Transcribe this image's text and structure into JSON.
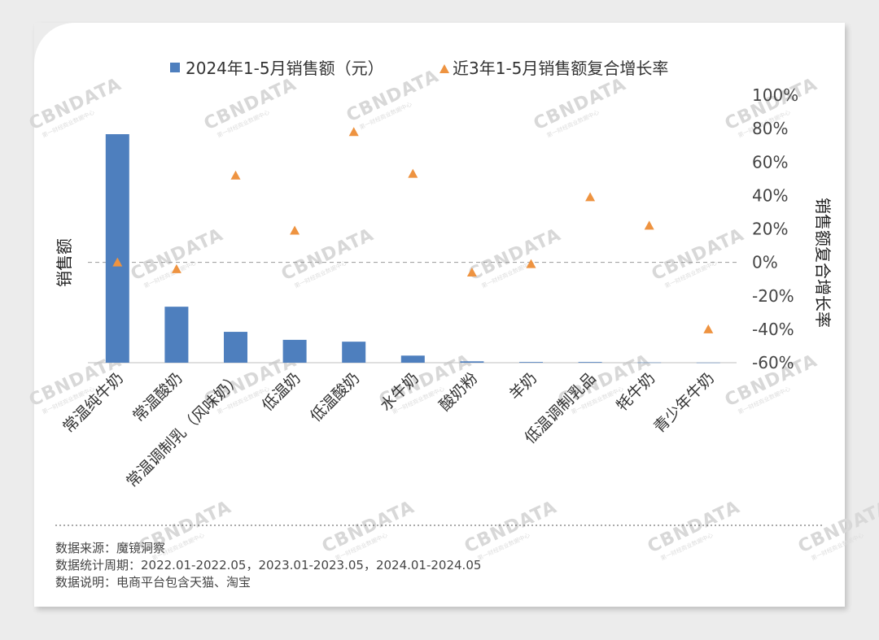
{
  "legend": {
    "bar_label": "2024年1-5月销售额（元）",
    "marker_label": "近3年1-5月销售额复合增长率"
  },
  "axes": {
    "left_title": "销售额",
    "right_title": "销售额复合增长率"
  },
  "watermark": {
    "brand": "CBNDATA",
    "sub": "第一财经商业数据中心"
  },
  "colors": {
    "bar": "#4e7fbe",
    "marker": "#ee9340",
    "zero_line": "#999999"
  },
  "chart_data": {
    "type": "bar",
    "categories": [
      "常温纯牛奶",
      "常温酸奶",
      "常温调制乳（风味奶）",
      "低温奶",
      "低温酸奶",
      "水牛奶",
      "酸奶粉",
      "羊奶",
      "低温调制乳品",
      "牦牛奶",
      "青少年牛奶"
    ],
    "series": [
      {
        "name": "2024年1-5月销售额（元）",
        "type": "bar",
        "axis": "left",
        "values": [
          100,
          24.5,
          13.5,
          10,
          9.2,
          3.1,
          0.6,
          0.3,
          0.3,
          0.1,
          0.05
        ]
      },
      {
        "name": "近3年1-5月销售额复合增长率",
        "type": "scatter",
        "marker": "triangle",
        "axis": "right",
        "values": [
          0,
          -4,
          52,
          19,
          78,
          53,
          -6,
          -1,
          39,
          22,
          -40
        ]
      }
    ],
    "y_left": {
      "title": "销售额",
      "ticks_shown": false,
      "ylim": [
        0,
        100
      ]
    },
    "y_right": {
      "title": "销售额复合增长率",
      "ylim": [
        -60,
        100
      ],
      "ticks": [
        100,
        80,
        60,
        40,
        20,
        0,
        -20,
        -40,
        -60
      ],
      "tick_labels": [
        "100%",
        "80%",
        "60%",
        "40%",
        "20%",
        "0%",
        "-20%",
        "-40%",
        "-60%"
      ]
    },
    "zero_line": "dashed",
    "grid": false,
    "legend_position": "top"
  },
  "footer": {
    "source": "数据来源：魔镜洞察",
    "period": "数据统计周期：2022.01-2022.05，2023.01-2023.05，2024.01-2024.05",
    "note": "数据说明：电商平台包含天猫、淘宝"
  }
}
